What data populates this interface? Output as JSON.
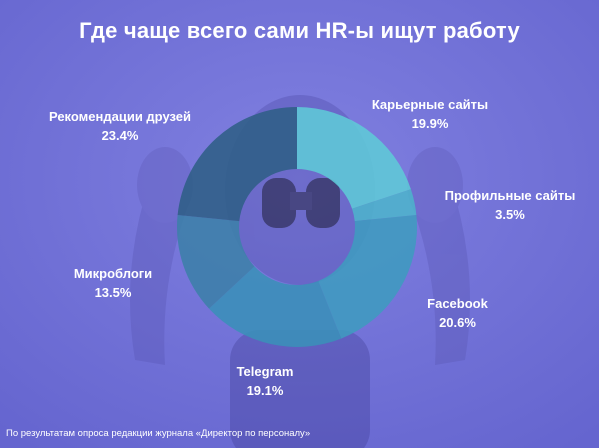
{
  "title": "Где чаще всего сами HR-ы ищут работу",
  "footnote": "По результатам опроса редакции журнала «Директор по персоналу»",
  "colors": {
    "background": "#6f6fd6",
    "slices": [
      "#5ec9d7",
      "#4db3cc",
      "#3f9bbf",
      "#3a8fb8",
      "#3c7fa8",
      "#2f5e86"
    ]
  },
  "chart_data": {
    "type": "pie",
    "title": "Где чаще всего сами HR-ы ищут работу",
    "style": "donut",
    "slices": [
      {
        "label": "Карьерные сайты",
        "value": 19.9,
        "display": "19.9%"
      },
      {
        "label": "Профильные сайты",
        "value": 3.5,
        "display": "3.5%"
      },
      {
        "label": "Facebook",
        "value": 20.6,
        "display": "20.6%"
      },
      {
        "label": "Telegram",
        "value": 19.1,
        "display": "19.1%"
      },
      {
        "label": "Микроблоги",
        "value": 13.5,
        "display": "13.5%"
      },
      {
        "label": "Рекомендации друзей",
        "value": 23.4,
        "display": "23.4%"
      }
    ]
  }
}
